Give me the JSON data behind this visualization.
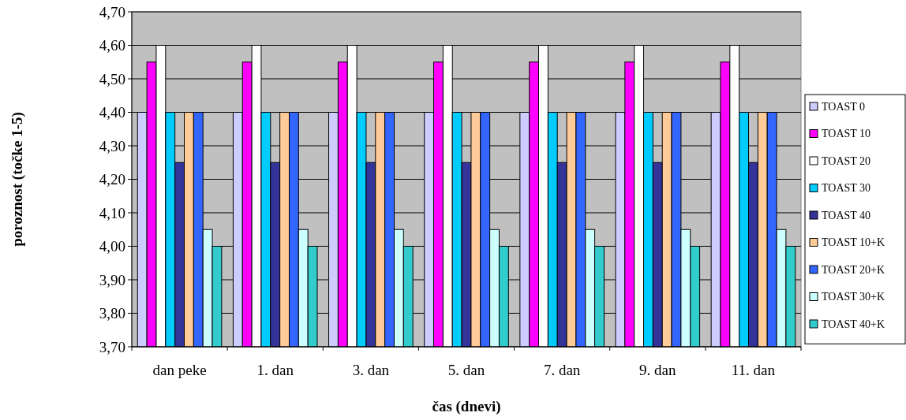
{
  "chart_data": {
    "type": "bar",
    "xlabel": "čas (dnevi)",
    "ylabel": "poroznost (točke 1-5)",
    "categories": [
      "dan peke",
      "1. dan",
      "3. dan",
      "5. dan",
      "7. dan",
      "9. dan",
      "11. dan"
    ],
    "series": [
      {
        "name": "TOAST 0",
        "color": "#ccccff",
        "values": [
          4.4,
          4.4,
          4.4,
          4.4,
          4.4,
          4.4,
          4.4
        ]
      },
      {
        "name": "TOAST 10",
        "color": "#ff00ff",
        "values": [
          4.55,
          4.55,
          4.55,
          4.55,
          4.55,
          4.55,
          4.55
        ]
      },
      {
        "name": "TOAST 20",
        "color": "#ffffff",
        "values": [
          4.6,
          4.6,
          4.6,
          4.6,
          4.6,
          4.6,
          4.6
        ]
      },
      {
        "name": "TOAST 30",
        "color": "#00ccff",
        "values": [
          4.4,
          4.4,
          4.4,
          4.4,
          4.4,
          4.4,
          4.4
        ]
      },
      {
        "name": "TOAST 40",
        "color": "#333399",
        "values": [
          4.25,
          4.25,
          4.25,
          4.25,
          4.25,
          4.25,
          4.25
        ]
      },
      {
        "name": "TOAST 10+K",
        "color": "#ffcc99",
        "values": [
          4.4,
          4.4,
          4.4,
          4.4,
          4.4,
          4.4,
          4.4
        ]
      },
      {
        "name": "TOAST 20+K",
        "color": "#3366ff",
        "values": [
          4.4,
          4.4,
          4.4,
          4.4,
          4.4,
          4.4,
          4.4
        ]
      },
      {
        "name": "TOAST 30+K",
        "color": "#ccffff",
        "values": [
          4.05,
          4.05,
          4.05,
          4.05,
          4.05,
          4.05,
          4.05
        ]
      },
      {
        "name": "TOAST 40+K",
        "color": "#33cccc",
        "values": [
          4.0,
          4.0,
          4.0,
          4.0,
          4.0,
          4.0,
          4.0
        ]
      }
    ],
    "ylim": [
      3.7,
      4.7
    ],
    "yticks": [
      {
        "value": 3.7,
        "label": "3,70"
      },
      {
        "value": 3.8,
        "label": "3,80"
      },
      {
        "value": 3.9,
        "label": "3,90"
      },
      {
        "value": 4.0,
        "label": "4,00"
      },
      {
        "value": 4.1,
        "label": "4,10"
      },
      {
        "value": 4.2,
        "label": "4,20"
      },
      {
        "value": 4.3,
        "label": "4,30"
      },
      {
        "value": 4.4,
        "label": "4,40"
      },
      {
        "value": 4.5,
        "label": "4,50"
      },
      {
        "value": 4.6,
        "label": "4,60"
      },
      {
        "value": 4.7,
        "label": "4,70"
      }
    ],
    "grid": "y",
    "legend": "right"
  }
}
